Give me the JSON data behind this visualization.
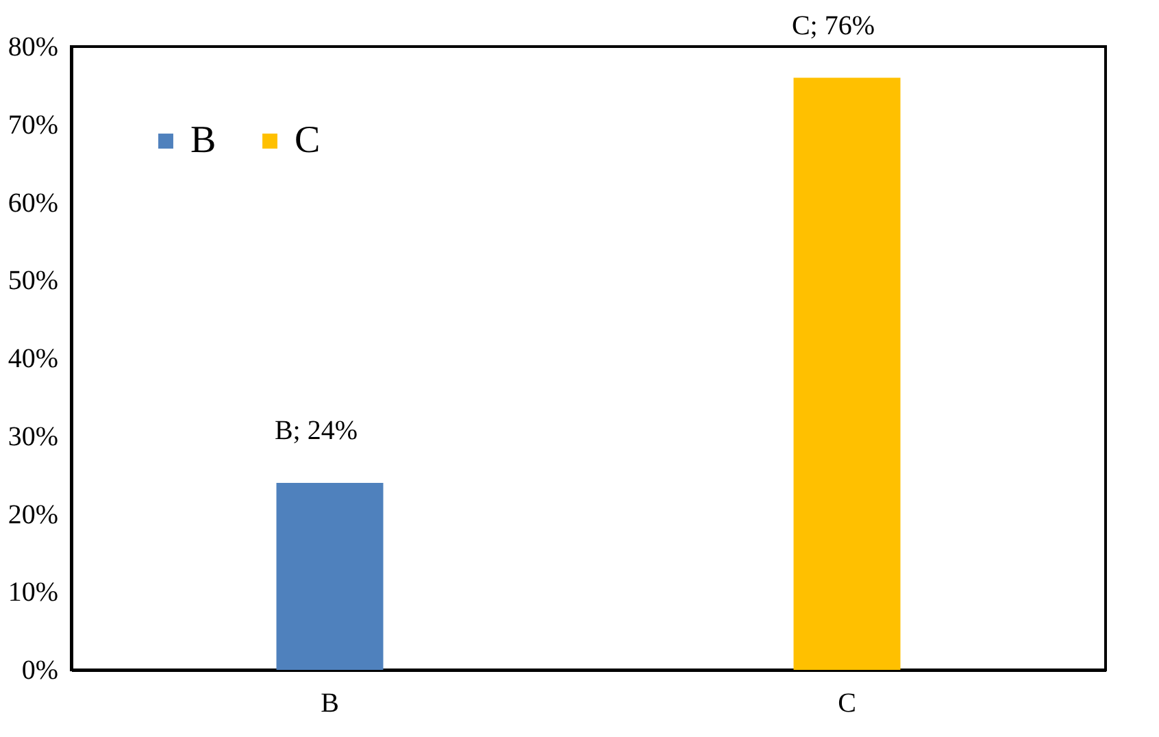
{
  "chart_data": {
    "type": "bar",
    "categories": [
      "B",
      "C"
    ],
    "series": [
      {
        "name": "B",
        "color": "#4f81bd",
        "values": [
          24,
          null
        ],
        "value_labels": [
          "B; 24%",
          null
        ]
      },
      {
        "name": "C",
        "color": "#ffc000",
        "values": [
          null,
          76
        ],
        "value_labels": [
          null,
          "C; 76%"
        ]
      }
    ],
    "ylim": [
      0,
      80
    ],
    "yticks": [
      {
        "value": 0,
        "label": "0%"
      },
      {
        "value": 10,
        "label": "10%"
      },
      {
        "value": 20,
        "label": "20%"
      },
      {
        "value": 30,
        "label": "30%"
      },
      {
        "value": 40,
        "label": "40%"
      },
      {
        "value": 50,
        "label": "50%"
      },
      {
        "value": 60,
        "label": "60%"
      },
      {
        "value": 70,
        "label": "70%"
      },
      {
        "value": 80,
        "label": "80%"
      }
    ],
    "legend": "top left",
    "grid": false
  }
}
